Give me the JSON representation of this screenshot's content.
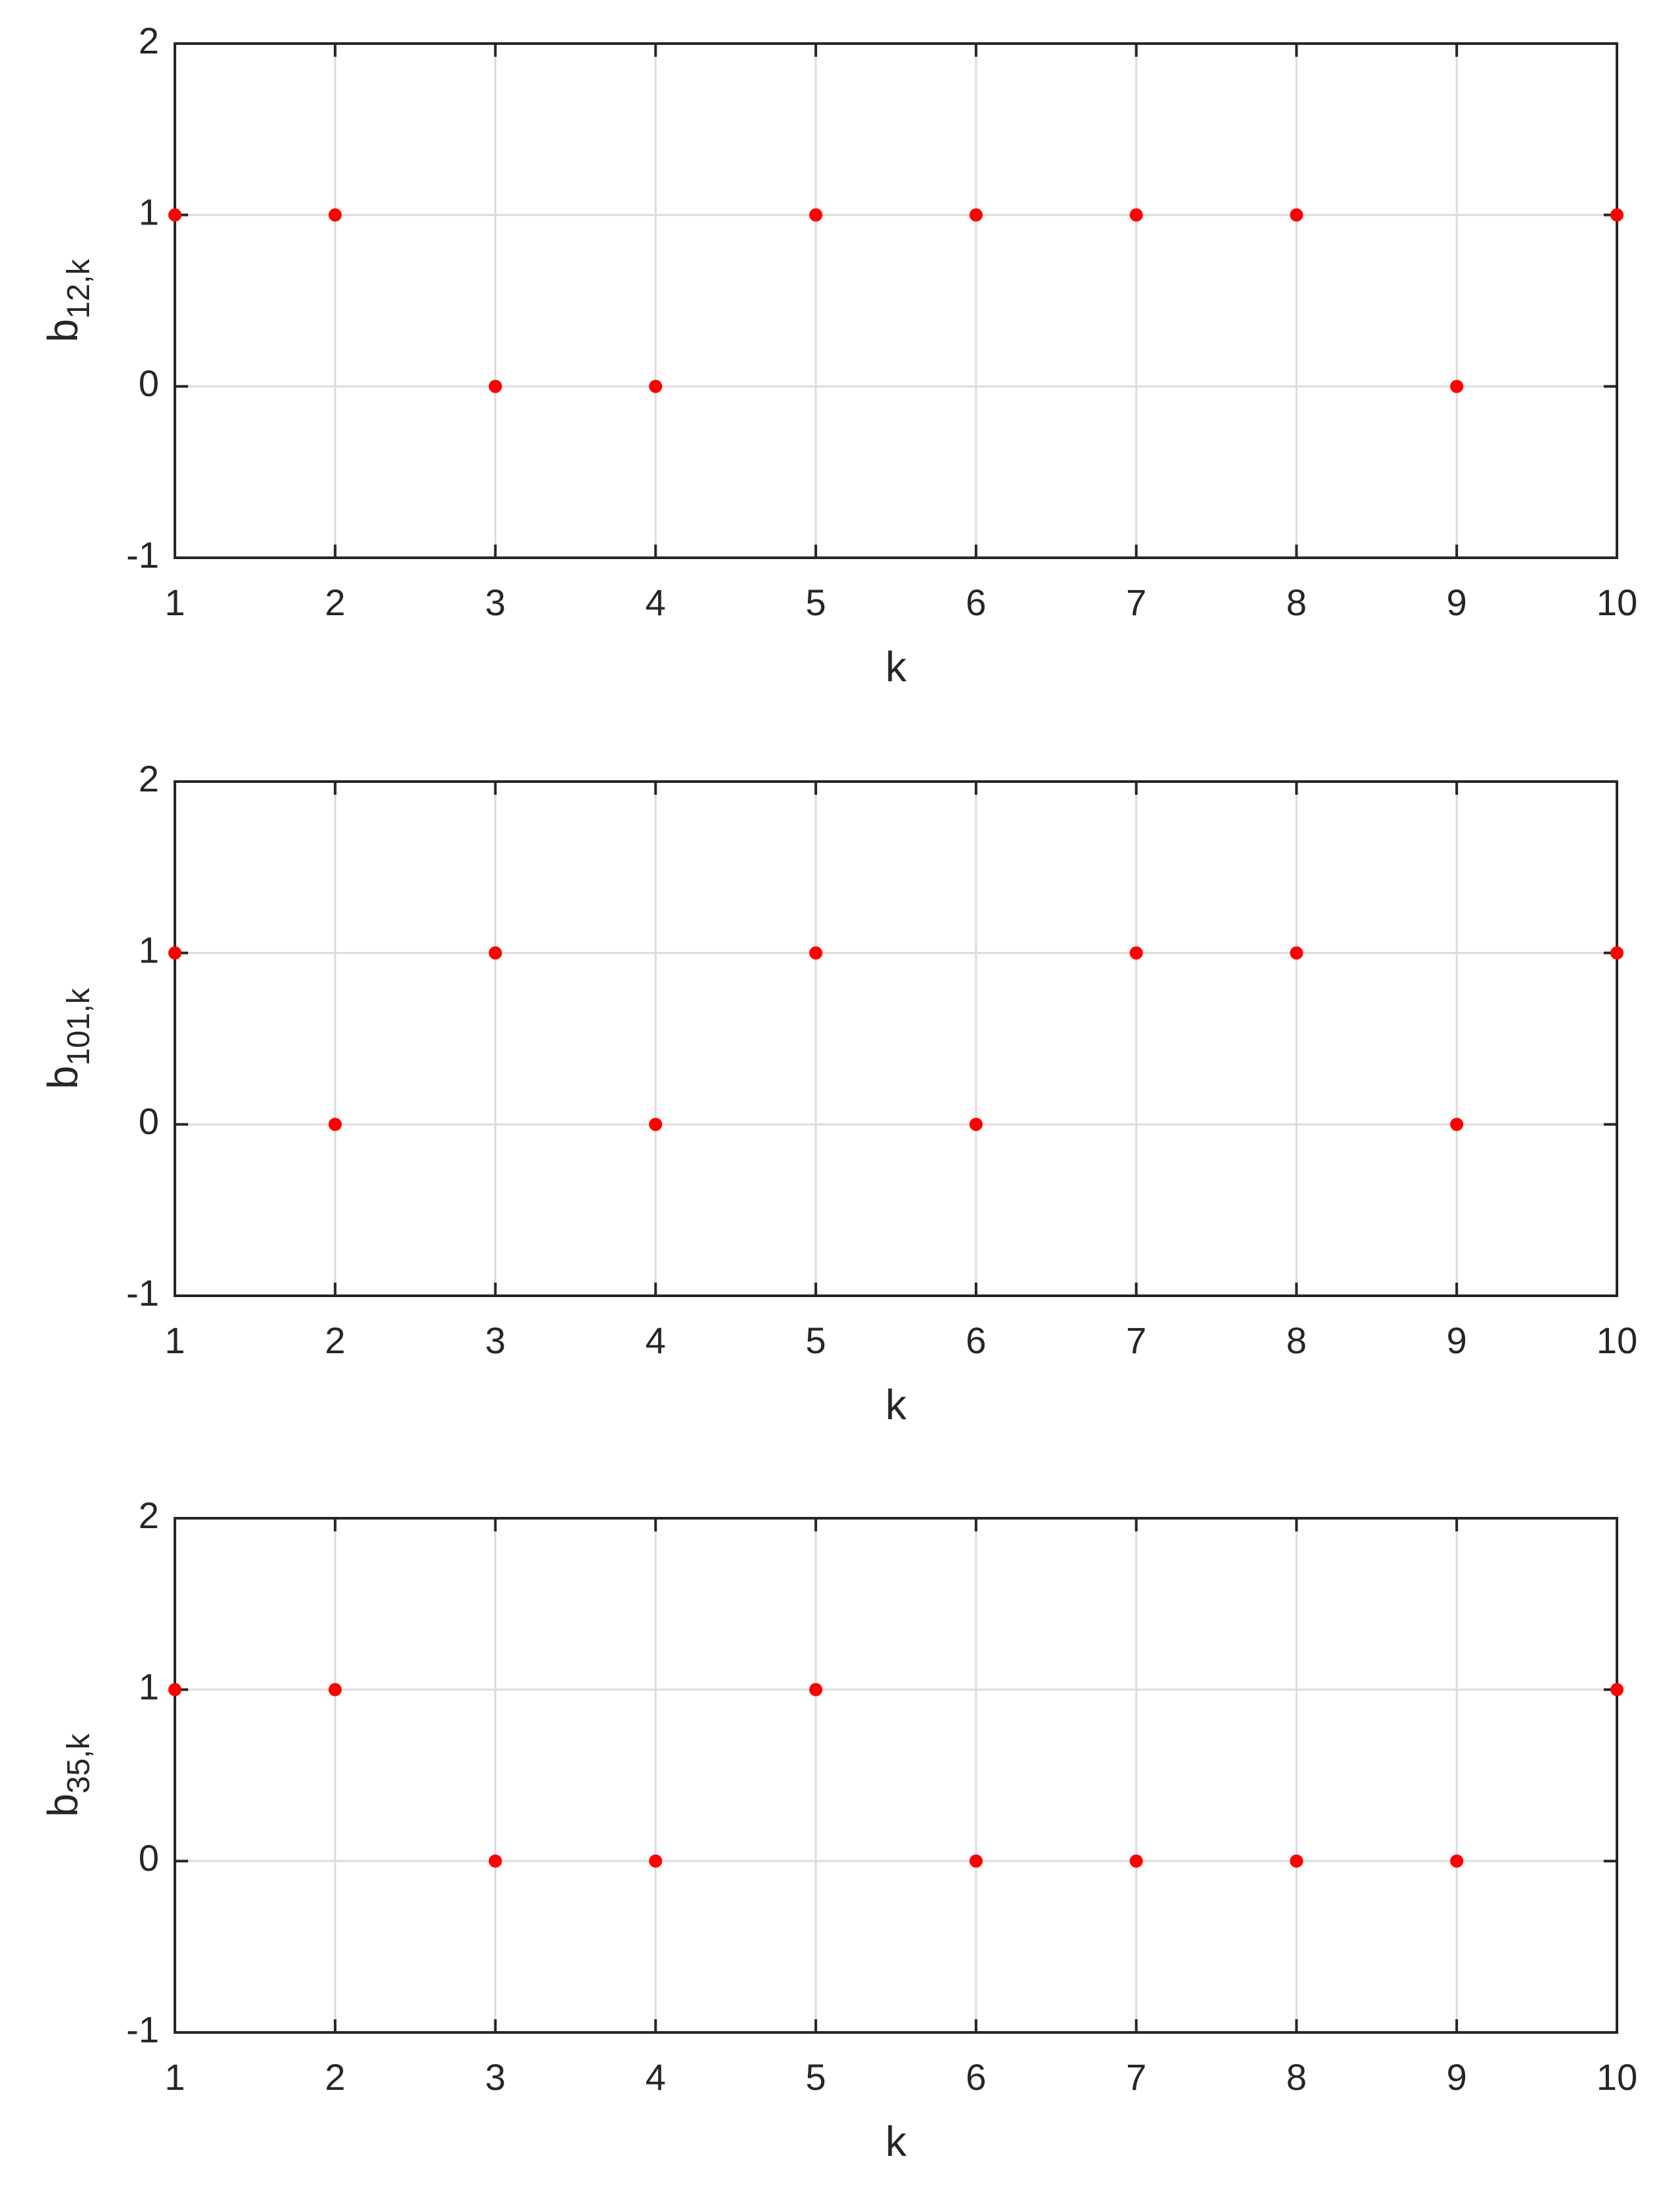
{
  "chart_data": [
    {
      "type": "scatter",
      "xlabel": "k",
      "ylabel": "b",
      "ylabel_subscript": "12,k",
      "x": [
        1,
        2,
        3,
        4,
        5,
        6,
        7,
        8,
        9,
        10
      ],
      "values": [
        1,
        1,
        0,
        0,
        1,
        1,
        1,
        1,
        0,
        1
      ],
      "color": "#ff0000",
      "xlim": [
        1,
        10
      ],
      "ylim": [
        -1,
        2
      ],
      "xticks": [
        1,
        2,
        3,
        4,
        5,
        6,
        7,
        8,
        9,
        10
      ],
      "yticks": [
        -1,
        0,
        1,
        2
      ],
      "grid": true
    },
    {
      "type": "scatter",
      "xlabel": "k",
      "ylabel": "b",
      "ylabel_subscript": "101,k",
      "x": [
        1,
        2,
        3,
        4,
        5,
        6,
        7,
        8,
        9,
        10
      ],
      "values": [
        1,
        0,
        1,
        0,
        1,
        0,
        1,
        1,
        0,
        1
      ],
      "color": "#ff0000",
      "xlim": [
        1,
        10
      ],
      "ylim": [
        -1,
        2
      ],
      "xticks": [
        1,
        2,
        3,
        4,
        5,
        6,
        7,
        8,
        9,
        10
      ],
      "yticks": [
        -1,
        0,
        1,
        2
      ],
      "grid": true
    },
    {
      "type": "scatter",
      "xlabel": "k",
      "ylabel": "b",
      "ylabel_subscript": "35,k",
      "x": [
        1,
        2,
        3,
        4,
        5,
        6,
        7,
        8,
        9,
        10
      ],
      "values": [
        1,
        1,
        0,
        0,
        1,
        0,
        0,
        0,
        0,
        1
      ],
      "color": "#ff0000",
      "xlim": [
        1,
        10
      ],
      "ylim": [
        -1,
        2
      ],
      "xticks": [
        1,
        2,
        3,
        4,
        5,
        6,
        7,
        8,
        9,
        10
      ],
      "yticks": [
        -1,
        0,
        1,
        2
      ],
      "grid": true
    }
  ]
}
